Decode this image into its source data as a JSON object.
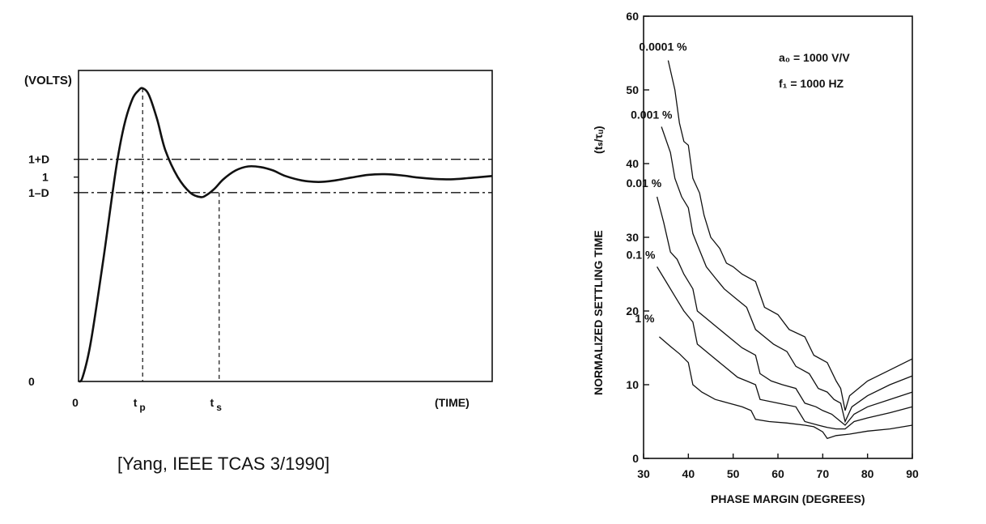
{
  "citation": "[Yang, IEEE TCAS 3/1990]",
  "chart_data": [
    {
      "type": "line",
      "ylabel": "(VOLTS)",
      "xlabel": "(TIME)",
      "y_tick_labels": [
        "1+D",
        "1",
        "1–D",
        "0"
      ],
      "x_tick_labels": [
        "0",
        "t",
        "t"
      ],
      "x_tick_subscripts": [
        "",
        "p",
        "s"
      ],
      "y_levels": {
        "zero": 0,
        "one_minus_d": 0.85,
        "one": 0.92,
        "one_plus_d": 1.0
      },
      "x_range": [
        0,
        10
      ],
      "y_range": [
        0,
        1.4
      ],
      "t_p": 1.55,
      "t_s": 3.4,
      "series": [
        {
          "x": [
            0,
            0.1,
            0.3,
            0.6,
            0.9,
            1.1,
            1.3,
            1.45,
            1.55,
            1.7,
            1.9,
            2.1,
            2.4,
            2.7,
            2.95,
            3.1,
            3.3,
            3.5,
            3.8,
            4.1,
            4.4,
            4.7,
            5.0,
            5.4,
            5.8,
            6.2,
            6.6,
            7.0,
            7.4,
            7.8,
            8.2,
            8.6,
            9.0,
            9.4,
            9.7,
            10.0
          ],
          "y": [
            0,
            0.02,
            0.18,
            0.55,
            0.95,
            1.15,
            1.27,
            1.31,
            1.32,
            1.29,
            1.18,
            1.04,
            0.92,
            0.85,
            0.83,
            0.84,
            0.87,
            0.91,
            0.95,
            0.968,
            0.965,
            0.95,
            0.925,
            0.905,
            0.898,
            0.905,
            0.918,
            0.93,
            0.933,
            0.928,
            0.918,
            0.912,
            0.91,
            0.915,
            0.92,
            0.925
          ]
        }
      ]
    },
    {
      "type": "line",
      "ylabel": "NORMALIZED   SETTLING   TIME",
      "ylabel_unit": "(tₛ/τᵤ)",
      "xlabel": "PHASE   MARGIN   (DEGREES)",
      "xlim": [
        30,
        90
      ],
      "ylim": [
        0,
        60
      ],
      "x_ticks": [
        30,
        40,
        50,
        60,
        70,
        80,
        90
      ],
      "y_ticks": [
        0,
        10,
        20,
        30,
        40,
        50,
        60
      ],
      "annotations": [
        "a₀ = 1000 V/V",
        "f₁ = 1000 HZ"
      ],
      "series": [
        {
          "name": "0.0001 %",
          "x": [
            35.5,
            37,
            38,
            39,
            40,
            41,
            42.5,
            43.5,
            45,
            47,
            48.5,
            50,
            52,
            55,
            57,
            60,
            62.5,
            66,
            68,
            71,
            73,
            74,
            75,
            76,
            80,
            85,
            90
          ],
          "y": [
            54,
            50,
            45.5,
            43,
            42.5,
            38,
            36,
            33,
            30,
            28.5,
            26.5,
            26,
            25,
            24,
            20.5,
            19.5,
            17.5,
            16.5,
            14,
            13,
            10.5,
            9.5,
            6.5,
            8.5,
            10.5,
            12,
            13.5
          ]
        },
        {
          "name": "0.001 %",
          "x": [
            34,
            36,
            37,
            38.5,
            40,
            41,
            42,
            44,
            46,
            48,
            51,
            53,
            55,
            57,
            59,
            62,
            64,
            67,
            69,
            71,
            72.5,
            74,
            75,
            76.5,
            80,
            85,
            90
          ],
          "y": [
            45,
            41.5,
            38,
            35.5,
            34,
            30.5,
            29,
            26,
            24.5,
            23,
            21.5,
            20.5,
            17.5,
            16.5,
            15.5,
            14.5,
            12.5,
            11.5,
            9.5,
            9,
            8,
            7.5,
            5,
            7,
            8.5,
            10,
            11.2
          ]
        },
        {
          "name": "0.01 %",
          "x": [
            33,
            34.5,
            36,
            37.5,
            39,
            41,
            42,
            44,
            46,
            49,
            52,
            55,
            56,
            58.5,
            61,
            64,
            66,
            68.5,
            70,
            72,
            74,
            75,
            77,
            80,
            85,
            90
          ],
          "y": [
            35.5,
            32,
            28,
            27,
            25,
            23,
            20,
            19,
            18,
            16.5,
            15,
            14,
            11.5,
            10.5,
            10,
            9.5,
            7.5,
            7,
            6.5,
            6,
            5,
            4.5,
            6,
            7,
            8,
            9
          ]
        },
        {
          "name": "0.1 %",
          "x": [
            33,
            35,
            37,
            39,
            41,
            42,
            45,
            48,
            51,
            53,
            55,
            56,
            60,
            64,
            66,
            69,
            71,
            73,
            75,
            77,
            80,
            85,
            90
          ],
          "y": [
            26,
            24,
            22,
            20,
            18.5,
            15.5,
            14,
            12.5,
            11,
            10.5,
            10,
            8,
            7.5,
            7,
            5,
            4.5,
            4.2,
            4,
            4,
            5,
            5.5,
            6.2,
            7
          ]
        },
        {
          "name": "1 %",
          "x": [
            33.5,
            36,
            38,
            40,
            41,
            43,
            46,
            49,
            52,
            54,
            55,
            58,
            62,
            66,
            68,
            70,
            71,
            73,
            76,
            80,
            85,
            90
          ],
          "y": [
            16.5,
            15.2,
            14.2,
            13,
            10,
            9,
            8,
            7.5,
            7,
            6.5,
            5.3,
            5,
            4.8,
            4.5,
            4.3,
            3.6,
            2.7,
            3.1,
            3.3,
            3.7,
            4,
            4.5
          ]
        }
      ]
    }
  ]
}
